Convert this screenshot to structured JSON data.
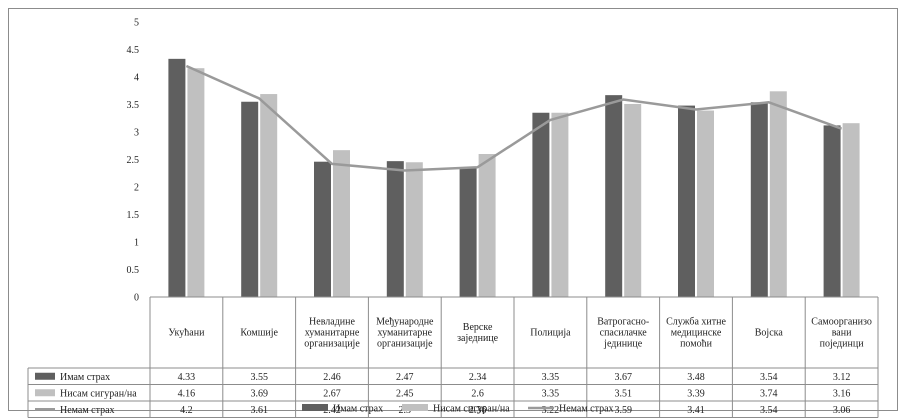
{
  "colors": {
    "series1": "#5f5f5f",
    "series2": "#c0c0c0",
    "series3": "#9a9a9a",
    "grid": "#d9d9d9",
    "border": "#8c8c8c"
  },
  "chart_data": {
    "type": "bar",
    "ylim": [
      0,
      5
    ],
    "yticks": [
      0,
      0.5,
      1,
      1.5,
      2,
      2.5,
      3,
      3.5,
      4,
      4.5,
      5
    ],
    "categories": [
      [
        "Укућани"
      ],
      [
        "Комшије"
      ],
      [
        "Невладине",
        "хуманитарне",
        "организације"
      ],
      [
        "Међународне",
        "хуманитарне",
        "организације"
      ],
      [
        "Верске",
        "заједнице"
      ],
      [
        "Полиција"
      ],
      [
        "Ватрогасно-",
        "спасилачке",
        "јединице"
      ],
      [
        "Служба хитне",
        "медицинске",
        "помоћи"
      ],
      [
        "Војска"
      ],
      [
        "Самоорганизо",
        "вани",
        "појединци"
      ]
    ],
    "series": [
      {
        "name": "Имам страх",
        "kind": "bar",
        "values": [
          4.33,
          3.55,
          2.46,
          2.47,
          2.34,
          3.35,
          3.67,
          3.48,
          3.54,
          3.12
        ]
      },
      {
        "name": "Нисам сигуран/на",
        "kind": "bar",
        "values": [
          4.16,
          3.69,
          2.67,
          2.45,
          2.6,
          3.35,
          3.51,
          3.39,
          3.74,
          3.16
        ]
      },
      {
        "name": "Немам страх",
        "kind": "line",
        "values": [
          4.2,
          3.61,
          2.42,
          2.3,
          2.36,
          3.22,
          3.59,
          3.41,
          3.54,
          3.06
        ]
      }
    ],
    "table_values": [
      [
        "4.33",
        "3.55",
        "2.46",
        "2.47",
        "2.34",
        "3.35",
        "3.67",
        "3.48",
        "3.54",
        "3.12"
      ],
      [
        "4.16",
        "3.69",
        "2.67",
        "2.45",
        "2.6",
        "3.35",
        "3.51",
        "3.39",
        "3.74",
        "3.16"
      ],
      [
        "4.2",
        "3.61",
        "2.42",
        "2.3",
        "2.36",
        "3.22",
        "3.59",
        "3.41",
        "3.54",
        "3.06"
      ]
    ],
    "legend_position": "bottom",
    "grid": false
  }
}
